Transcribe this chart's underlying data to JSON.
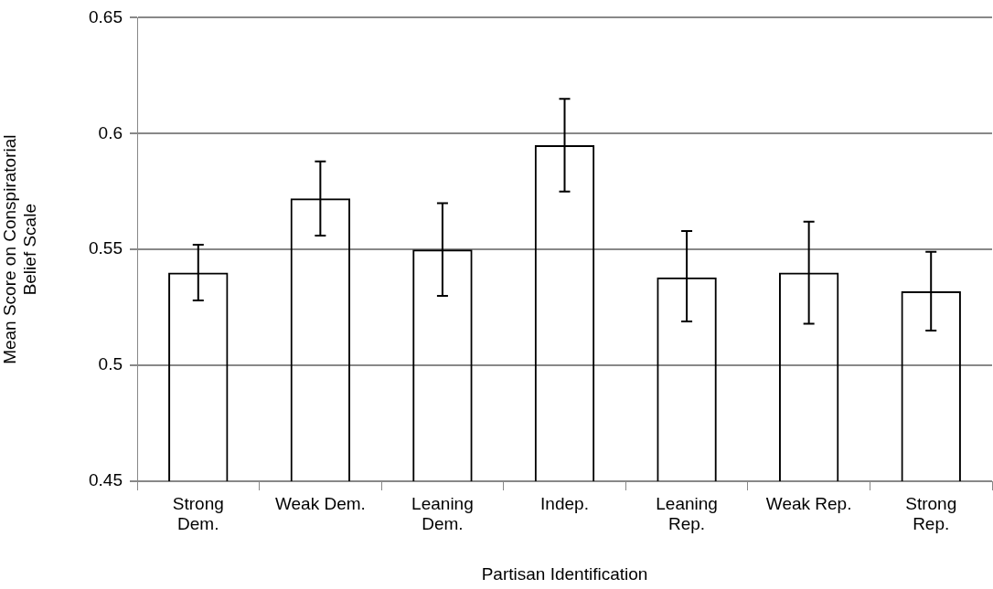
{
  "chart_data": {
    "type": "bar",
    "categories": [
      "Strong Dem.",
      "Weak Dem.",
      "Leaning Dem.",
      "Indep.",
      "Leaning Rep.",
      "Weak Rep.",
      "Strong Rep."
    ],
    "values": [
      0.54,
      0.572,
      0.55,
      0.595,
      0.538,
      0.54,
      0.532
    ],
    "errors": [
      [
        0.528,
        0.552
      ],
      [
        0.556,
        0.588
      ],
      [
        0.53,
        0.57
      ],
      [
        0.575,
        0.615
      ],
      [
        0.519,
        0.558
      ],
      [
        0.518,
        0.562
      ],
      [
        0.515,
        0.549
      ]
    ],
    "color": "#000000",
    "xlabel": "Partisan Identification",
    "ylabel": "Mean Score on Conspiratorial Belief Scale",
    "ylim": [
      0.45,
      0.65
    ],
    "yticks": [
      0.45,
      0.5,
      0.55,
      0.6,
      0.65
    ],
    "grid": "y",
    "legend": false
  }
}
